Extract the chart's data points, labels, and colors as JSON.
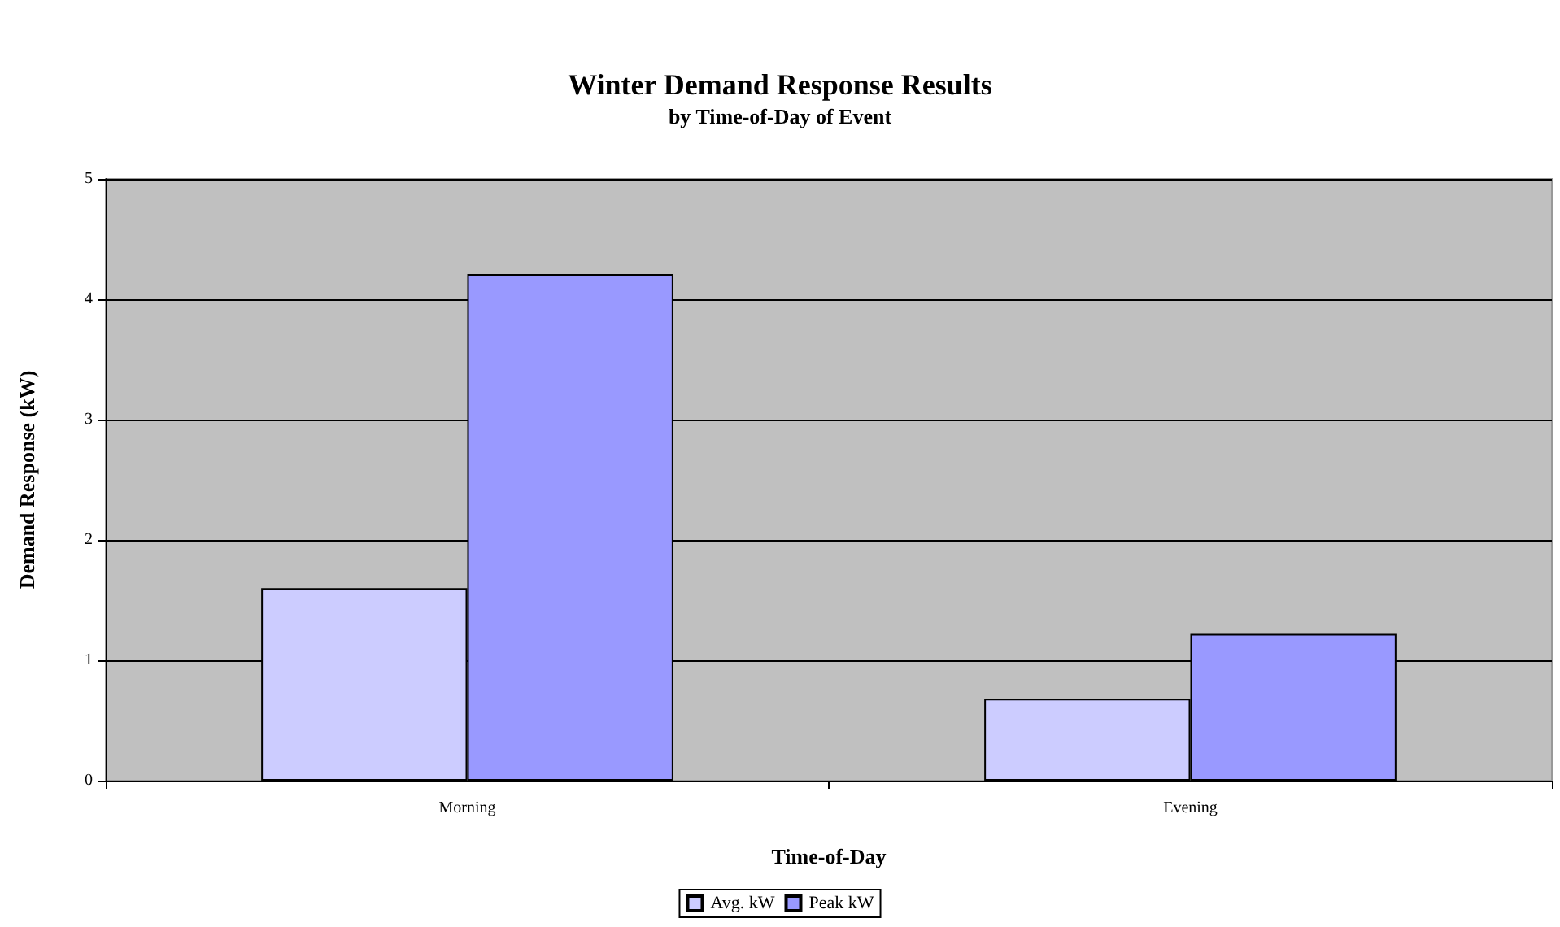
{
  "chart_data": {
    "type": "bar",
    "title": "Winter Demand Response Results",
    "subtitle": "by Time-of-Day of Event",
    "xlabel": "Time-of-Day",
    "ylabel": "Demand Response (kW)",
    "categories": [
      "Morning",
      "Evening"
    ],
    "series": [
      {
        "name": "Avg. kW",
        "color": "#ccccff",
        "values": [
          1.6,
          0.68
        ]
      },
      {
        "name": "Peak kW",
        "color": "#9999ff",
        "values": [
          4.21,
          1.22
        ]
      }
    ],
    "ylim": [
      0,
      5
    ],
    "yticks": [
      0,
      1,
      2,
      3,
      4,
      5
    ],
    "grid": "y",
    "legend": "bottom"
  }
}
